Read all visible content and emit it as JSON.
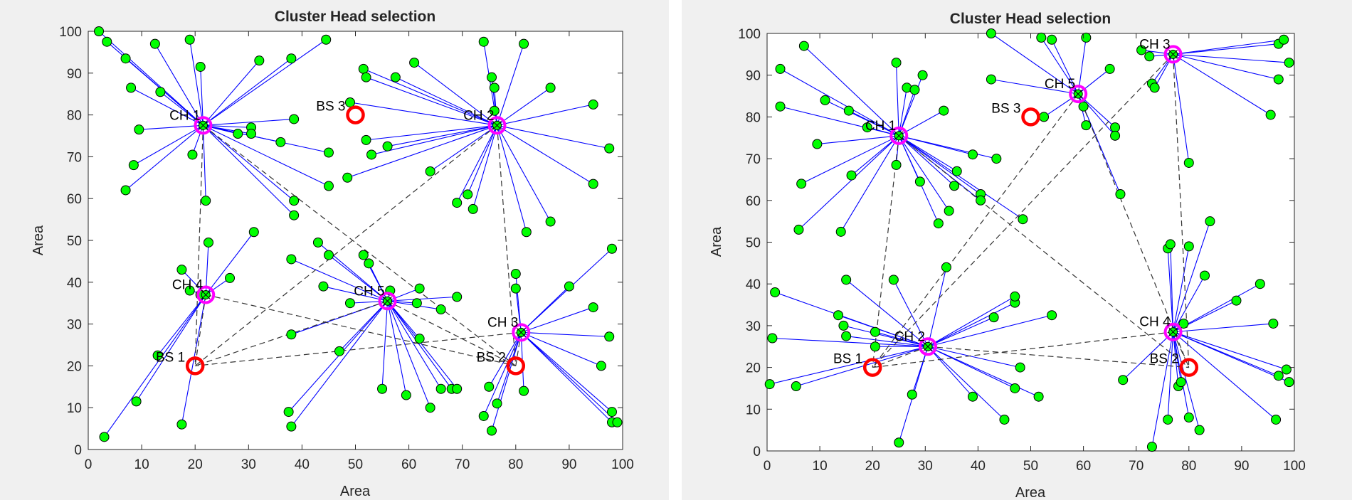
{
  "chart_data": [
    {
      "type": "scatter",
      "title": "Cluster Head selection",
      "xlabel": "Area",
      "ylabel": "Area",
      "xlim": [
        0,
        100
      ],
      "ylim": [
        0,
        100
      ],
      "xticks": [
        "0",
        "10",
        "20",
        "30",
        "40",
        "50",
        "60",
        "70",
        "80",
        "90",
        "100"
      ],
      "yticks": [
        "0",
        "10",
        "20",
        "30",
        "40",
        "50",
        "60",
        "70",
        "80",
        "90",
        "100"
      ],
      "colors": {
        "node": "#00ff00",
        "link": "#0000ff",
        "head": "#ff00ff",
        "bs": "#ff0000",
        "route": "#333333"
      },
      "cluster_heads": [
        {
          "label": "CH 1",
          "x": 21.5,
          "y": 77.5
        },
        {
          "label": "CH 2",
          "x": 76.5,
          "y": 77.5
        },
        {
          "label": "CH 3",
          "x": 81,
          "y": 28
        },
        {
          "label": "CH 4",
          "x": 22,
          "y": 37
        },
        {
          "label": "CH 5",
          "x": 56,
          "y": 35.5
        }
      ],
      "base_stations": [
        {
          "label": "BS 1",
          "x": 20,
          "y": 20
        },
        {
          "label": "BS 2",
          "x": 80,
          "y": 20
        },
        {
          "label": "BS 3",
          "x": 50,
          "y": 80
        }
      ],
      "routes": [
        [
          0,
          3
        ],
        [
          0,
          4
        ],
        [
          1,
          3
        ],
        [
          1,
          4
        ],
        [
          2,
          3
        ],
        [
          2,
          4
        ],
        [
          3,
          3
        ],
        [
          3,
          4
        ],
        [
          4,
          3
        ],
        [
          4,
          4
        ]
      ],
      "nodes": [
        [
          2,
          100,
          0
        ],
        [
          3.5,
          97.5,
          0
        ],
        [
          7,
          93.5,
          0
        ],
        [
          8,
          86.5,
          0
        ],
        [
          12.5,
          97,
          0
        ],
        [
          13.5,
          85.5,
          0
        ],
        [
          19,
          98,
          0
        ],
        [
          21,
          91.5,
          0
        ],
        [
          9.5,
          76.5,
          0
        ],
        [
          8.5,
          68,
          0
        ],
        [
          7,
          62,
          0
        ],
        [
          19.5,
          70.5,
          0
        ],
        [
          22,
          59.5,
          0
        ],
        [
          28,
          75.5,
          0
        ],
        [
          30.5,
          77,
          0
        ],
        [
          30.5,
          75.5,
          0
        ],
        [
          32,
          93,
          0
        ],
        [
          38,
          93.5,
          0
        ],
        [
          44.5,
          98,
          0
        ],
        [
          36,
          73.5,
          0
        ],
        [
          38.5,
          79,
          0
        ],
        [
          45,
          71,
          0
        ],
        [
          45,
          63,
          0
        ],
        [
          38.5,
          59.5,
          0
        ],
        [
          38.5,
          56,
          0
        ],
        [
          49,
          83,
          1
        ],
        [
          51.5,
          91,
          1
        ],
        [
          52,
          89,
          1
        ],
        [
          57.5,
          89,
          1
        ],
        [
          61,
          92.5,
          1
        ],
        [
          52,
          74,
          1
        ],
        [
          53,
          70.5,
          1
        ],
        [
          56,
          72.5,
          1
        ],
        [
          48.5,
          65,
          1
        ],
        [
          64,
          66.5,
          1
        ],
        [
          69,
          59,
          1
        ],
        [
          71,
          61,
          1
        ],
        [
          72,
          57.5,
          1
        ],
        [
          74,
          97.5,
          1
        ],
        [
          75.5,
          89,
          1
        ],
        [
          76,
          86.5,
          1
        ],
        [
          81.5,
          97,
          1
        ],
        [
          86.5,
          86.5,
          1
        ],
        [
          94.5,
          82.5,
          1
        ],
        [
          97.5,
          72,
          1
        ],
        [
          94.5,
          63.5,
          1
        ],
        [
          82,
          52,
          1
        ],
        [
          86.5,
          54.5,
          1
        ],
        [
          76,
          81,
          1
        ],
        [
          80,
          42,
          2
        ],
        [
          80,
          38.5,
          2
        ],
        [
          90,
          39,
          2
        ],
        [
          94.5,
          34,
          2
        ],
        [
          98,
          48,
          2
        ],
        [
          97.5,
          27,
          2
        ],
        [
          96,
          20,
          2
        ],
        [
          98,
          9,
          2
        ],
        [
          98,
          6.5,
          2
        ],
        [
          99,
          6.5,
          2
        ],
        [
          81.5,
          14,
          2
        ],
        [
          74,
          8,
          2
        ],
        [
          75.5,
          4.5,
          2
        ],
        [
          76.5,
          11,
          2
        ],
        [
          75,
          15,
          2
        ],
        [
          22.5,
          49.5,
          3
        ],
        [
          26.5,
          41,
          3
        ],
        [
          17.5,
          43,
          3
        ],
        [
          19,
          38,
          3
        ],
        [
          13,
          22.5,
          3
        ],
        [
          9,
          11.5,
          3
        ],
        [
          3,
          3,
          3
        ],
        [
          17.5,
          6,
          3
        ],
        [
          31,
          52,
          3
        ],
        [
          21,
          37,
          3
        ],
        [
          51.5,
          46.5,
          4
        ],
        [
          52.5,
          44.5,
          4
        ],
        [
          43,
          49.5,
          4
        ],
        [
          45,
          46.5,
          4
        ],
        [
          38,
          45.5,
          4
        ],
        [
          44,
          39,
          4
        ],
        [
          49,
          35,
          4
        ],
        [
          56.5,
          38,
          4
        ],
        [
          62,
          38.5,
          4
        ],
        [
          61.5,
          35,
          4
        ],
        [
          66,
          33.5,
          4
        ],
        [
          69,
          36.5,
          4
        ],
        [
          62,
          26.5,
          4
        ],
        [
          47,
          23.5,
          4
        ],
        [
          38,
          27.5,
          4
        ],
        [
          37.5,
          9,
          4
        ],
        [
          38,
          5.5,
          4
        ],
        [
          55,
          14.5,
          4
        ],
        [
          59.5,
          13,
          4
        ],
        [
          64,
          10,
          4
        ],
        [
          66,
          14.5,
          4
        ],
        [
          68,
          14.5,
          4
        ],
        [
          69,
          14.5,
          4
        ]
      ]
    },
    {
      "type": "scatter",
      "title": "Cluster Head selection",
      "xlabel": "Area",
      "ylabel": "Area",
      "xlim": [
        0,
        100
      ],
      "ylim": [
        0,
        100
      ],
      "xticks": [
        "0",
        "10",
        "20",
        "30",
        "40",
        "50",
        "60",
        "70",
        "80",
        "90",
        "100"
      ],
      "yticks": [
        "0",
        "10",
        "20",
        "30",
        "40",
        "50",
        "60",
        "70",
        "80",
        "90",
        "100"
      ],
      "colors": {
        "node": "#00ff00",
        "link": "#0000ff",
        "head": "#ff00ff",
        "bs": "#ff0000",
        "route": "#333333"
      },
      "cluster_heads": [
        {
          "label": "CH 1",
          "x": 25,
          "y": 75.5
        },
        {
          "label": "CH 2",
          "x": 30.5,
          "y": 25
        },
        {
          "label": "CH 3",
          "x": 77,
          "y": 95
        },
        {
          "label": "CH 4",
          "x": 77,
          "y": 28.5
        },
        {
          "label": "CH 5",
          "x": 59,
          "y": 85.5
        }
      ],
      "base_stations": [
        {
          "label": "BS 1",
          "x": 20,
          "y": 20
        },
        {
          "label": "BS 2",
          "x": 80,
          "y": 20
        },
        {
          "label": "BS 3",
          "x": 50,
          "y": 80
        }
      ],
      "routes": [
        [
          0,
          3
        ],
        [
          0,
          4
        ],
        [
          1,
          3
        ],
        [
          1,
          4
        ],
        [
          2,
          3
        ],
        [
          2,
          4
        ],
        [
          3,
          3
        ],
        [
          3,
          4
        ],
        [
          4,
          3
        ],
        [
          4,
          4
        ]
      ],
      "nodes": [
        [
          7,
          97,
          0
        ],
        [
          2.5,
          91.5,
          0
        ],
        [
          2.5,
          82.5,
          0
        ],
        [
          11,
          84,
          0
        ],
        [
          9.5,
          73.5,
          0
        ],
        [
          15.5,
          81.5,
          0
        ],
        [
          16,
          66,
          0
        ],
        [
          6.5,
          64,
          0
        ],
        [
          6,
          53,
          0
        ],
        [
          14,
          52.5,
          0
        ],
        [
          19,
          77.5,
          0
        ],
        [
          24.5,
          68.5,
          0
        ],
        [
          24.5,
          93,
          0
        ],
        [
          26.5,
          87,
          0
        ],
        [
          28,
          86.5,
          0
        ],
        [
          29.5,
          90,
          0
        ],
        [
          33.5,
          81.5,
          0
        ],
        [
          29,
          64.5,
          0
        ],
        [
          32.5,
          54.5,
          0
        ],
        [
          34.5,
          57.5,
          0
        ],
        [
          35.5,
          63.5,
          0
        ],
        [
          36,
          67,
          0
        ],
        [
          39,
          71,
          0
        ],
        [
          43.5,
          70,
          0
        ],
        [
          40.5,
          61.5,
          0
        ],
        [
          40.5,
          60,
          0
        ],
        [
          48.5,
          55.5,
          0
        ],
        [
          42.5,
          100,
          4
        ],
        [
          42.5,
          89,
          4
        ],
        [
          52,
          99,
          4
        ],
        [
          54,
          98.5,
          4
        ],
        [
          60.5,
          99,
          4
        ],
        [
          52.5,
          80,
          4
        ],
        [
          60,
          82.5,
          4
        ],
        [
          60.5,
          78,
          4
        ],
        [
          65,
          91.5,
          4
        ],
        [
          66,
          77.5,
          4
        ],
        [
          66,
          75.5,
          4
        ],
        [
          67,
          61.5,
          4
        ],
        [
          71,
          96,
          2
        ],
        [
          72.5,
          94.5,
          2
        ],
        [
          73,
          88,
          2
        ],
        [
          73.5,
          87,
          2
        ],
        [
          80,
          69,
          2
        ],
        [
          95.5,
          80.5,
          2
        ],
        [
          97,
          89,
          2
        ],
        [
          97,
          97.5,
          2
        ],
        [
          98,
          98.5,
          2
        ],
        [
          99,
          93,
          2
        ],
        [
          76,
          48.5,
          3
        ],
        [
          76.5,
          49.5,
          3
        ],
        [
          80,
          49,
          3
        ],
        [
          83,
          42,
          3
        ],
        [
          84,
          55,
          3
        ],
        [
          89,
          36,
          3
        ],
        [
          93.5,
          40,
          3
        ],
        [
          96,
          30.5,
          3
        ],
        [
          79,
          30.5,
          3
        ],
        [
          76,
          7.5,
          3
        ],
        [
          78,
          15.5,
          3
        ],
        [
          78.5,
          16.5,
          3
        ],
        [
          80,
          8,
          3
        ],
        [
          82,
          5,
          3
        ],
        [
          73,
          1,
          3
        ],
        [
          67.5,
          17,
          3
        ],
        [
          96.5,
          7.5,
          3
        ],
        [
          97,
          18,
          3
        ],
        [
          98.5,
          19.5,
          3
        ],
        [
          99,
          16.5,
          3
        ],
        [
          1.5,
          38,
          1
        ],
        [
          1,
          27,
          1
        ],
        [
          0.5,
          16,
          1
        ],
        [
          5.5,
          15.5,
          1
        ],
        [
          13.5,
          32.5,
          1
        ],
        [
          14.5,
          30,
          1
        ],
        [
          15,
          27.5,
          1
        ],
        [
          15,
          41,
          1
        ],
        [
          20.5,
          25,
          1
        ],
        [
          20.5,
          28.5,
          1
        ],
        [
          24,
          41,
          1
        ],
        [
          34,
          44,
          1
        ],
        [
          43,
          32,
          1
        ],
        [
          47,
          35.5,
          1
        ],
        [
          47,
          37,
          1
        ],
        [
          54,
          32.5,
          1
        ],
        [
          48,
          20,
          1
        ],
        [
          47,
          15,
          1
        ],
        [
          51.5,
          13,
          1
        ],
        [
          45,
          7.5,
          1
        ],
        [
          39,
          13,
          1
        ],
        [
          27.5,
          13.5,
          1
        ],
        [
          25,
          2,
          1
        ]
      ]
    }
  ]
}
